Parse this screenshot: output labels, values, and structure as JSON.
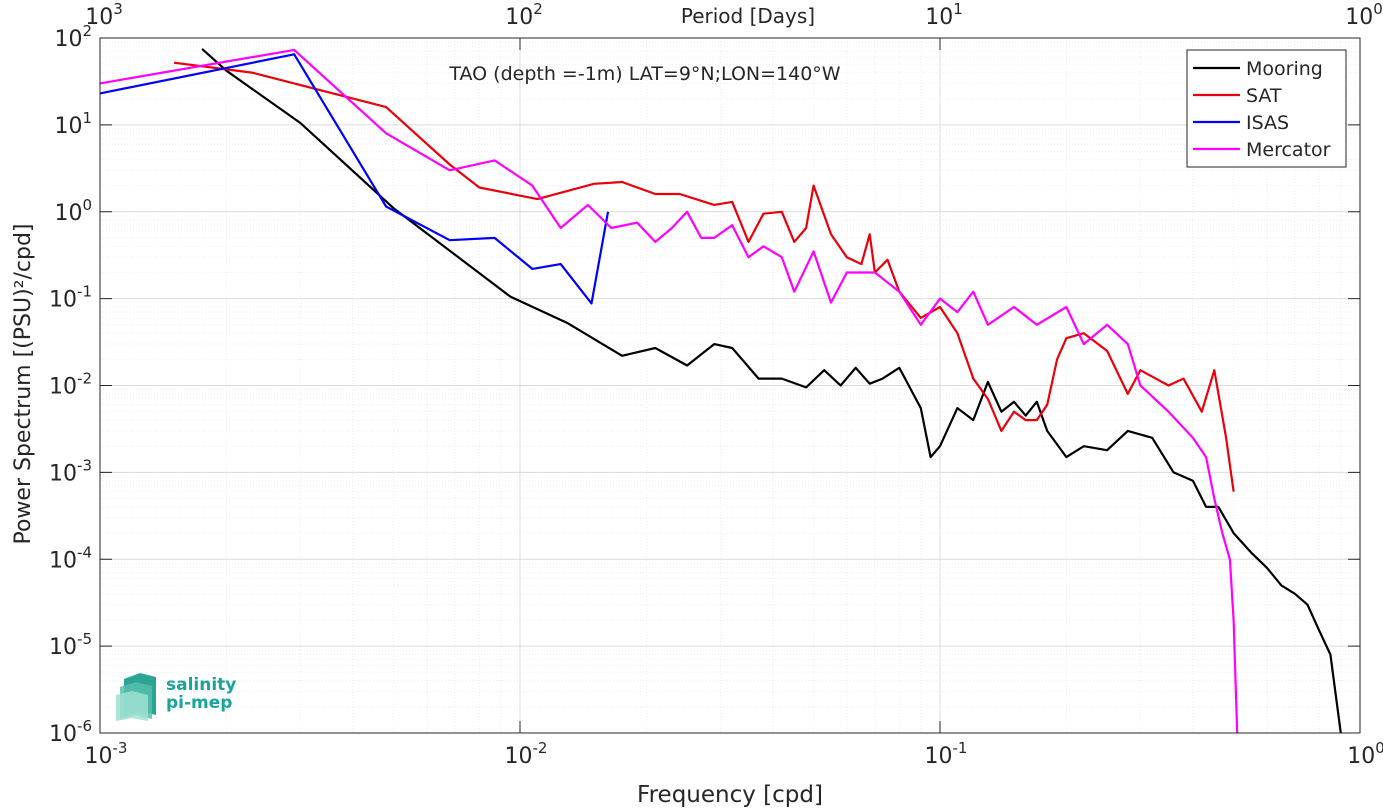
{
  "logo": {
    "line1": "salinity",
    "line2": "pi-mep",
    "color": "#1aa39a"
  },
  "chart_data": {
    "type": "line",
    "title": "TAO (depth =-1m) LAT=9°N;LON=140°W",
    "xlabel": "Frequency [cpd]",
    "ylabel": "Power Spectrum [(PSU)²/cpd]",
    "top_xlabel": "Period [Days]",
    "xscale": "log",
    "yscale": "log",
    "xlim": [
      0.001,
      1
    ],
    "ylim": [
      1e-06,
      100
    ],
    "grid": true,
    "legend_position": "top-right",
    "x_ticks": [
      {
        "value": 0.001,
        "base": "10",
        "exp": "-3"
      },
      {
        "value": 0.01,
        "base": "10",
        "exp": "-2"
      },
      {
        "value": 0.1,
        "base": "10",
        "exp": "-1"
      },
      {
        "value": 1,
        "base": "10",
        "exp": "0"
      }
    ],
    "top_x_ticks": [
      {
        "value": 0.001,
        "base": "10",
        "exp": "3"
      },
      {
        "value": 0.01,
        "base": "10",
        "exp": "2"
      },
      {
        "value": 0.1,
        "base": "10",
        "exp": "1"
      },
      {
        "value": 1,
        "base": "10",
        "exp": "0"
      }
    ],
    "y_ticks": [
      {
        "value": 1e-06,
        "base": "10",
        "exp": "-6"
      },
      {
        "value": 1e-05,
        "base": "10",
        "exp": "-5"
      },
      {
        "value": 0.0001,
        "base": "10",
        "exp": "-4"
      },
      {
        "value": 0.001,
        "base": "10",
        "exp": "-3"
      },
      {
        "value": 0.01,
        "base": "10",
        "exp": "-2"
      },
      {
        "value": 0.1,
        "base": "10",
        "exp": "-1"
      },
      {
        "value": 1,
        "base": "10",
        "exp": "0"
      },
      {
        "value": 10,
        "base": "10",
        "exp": "1"
      },
      {
        "value": 100,
        "base": "10",
        "exp": "2"
      }
    ],
    "series": [
      {
        "name": "Mooring",
        "color": "#000000",
        "points": [
          [
            0.00175,
            75
          ],
          [
            0.002,
            42
          ],
          [
            0.003,
            10.5
          ],
          [
            0.005,
            1.1
          ],
          [
            0.0095,
            0.105
          ],
          [
            0.013,
            0.052
          ],
          [
            0.0175,
            0.022
          ],
          [
            0.021,
            0.027
          ],
          [
            0.025,
            0.017
          ],
          [
            0.029,
            0.03
          ],
          [
            0.032,
            0.027
          ],
          [
            0.037,
            0.012
          ],
          [
            0.042,
            0.012
          ],
          [
            0.048,
            0.0095
          ],
          [
            0.053,
            0.015
          ],
          [
            0.058,
            0.01
          ],
          [
            0.063,
            0.016
          ],
          [
            0.068,
            0.0105
          ],
          [
            0.073,
            0.012
          ],
          [
            0.08,
            0.016
          ],
          [
            0.09,
            0.0055
          ],
          [
            0.095,
            0.0015
          ],
          [
            0.1,
            0.002
          ],
          [
            0.11,
            0.0055
          ],
          [
            0.12,
            0.004
          ],
          [
            0.13,
            0.011
          ],
          [
            0.14,
            0.005
          ],
          [
            0.15,
            0.0065
          ],
          [
            0.16,
            0.0045
          ],
          [
            0.17,
            0.0065
          ],
          [
            0.18,
            0.003
          ],
          [
            0.2,
            0.0015
          ],
          [
            0.22,
            0.002
          ],
          [
            0.25,
            0.0018
          ],
          [
            0.28,
            0.003
          ],
          [
            0.32,
            0.0025
          ],
          [
            0.36,
            0.001
          ],
          [
            0.4,
            0.0008
          ],
          [
            0.43,
            0.0004
          ],
          [
            0.46,
            0.0004
          ],
          [
            0.5,
            0.0002
          ],
          [
            0.55,
            0.00012
          ],
          [
            0.6,
            8e-05
          ],
          [
            0.65,
            5e-05
          ],
          [
            0.7,
            4e-05
          ],
          [
            0.75,
            3e-05
          ],
          [
            0.8,
            1.5e-05
          ],
          [
            0.85,
            8e-06
          ],
          [
            0.9,
            1e-06
          ]
        ]
      },
      {
        "name": "SAT",
        "color": "#e8000b",
        "points": [
          [
            0.0015,
            52
          ],
          [
            0.0023,
            40
          ],
          [
            0.0048,
            16
          ],
          [
            0.0068,
            3.5
          ],
          [
            0.008,
            1.9
          ],
          [
            0.011,
            1.4
          ],
          [
            0.015,
            2.1
          ],
          [
            0.0175,
            2.2
          ],
          [
            0.021,
            1.6
          ],
          [
            0.024,
            1.6
          ],
          [
            0.029,
            1.2
          ],
          [
            0.032,
            1.3
          ],
          [
            0.035,
            0.45
          ],
          [
            0.038,
            0.95
          ],
          [
            0.042,
            1.0
          ],
          [
            0.045,
            0.45
          ],
          [
            0.048,
            0.65
          ],
          [
            0.05,
            2.0
          ],
          [
            0.055,
            0.55
          ],
          [
            0.06,
            0.3
          ],
          [
            0.065,
            0.25
          ],
          [
            0.068,
            0.55
          ],
          [
            0.07,
            0.2
          ],
          [
            0.075,
            0.28
          ],
          [
            0.08,
            0.12
          ],
          [
            0.09,
            0.06
          ],
          [
            0.1,
            0.08
          ],
          [
            0.11,
            0.04
          ],
          [
            0.12,
            0.012
          ],
          [
            0.13,
            0.007
          ],
          [
            0.14,
            0.003
          ],
          [
            0.15,
            0.005
          ],
          [
            0.16,
            0.004
          ],
          [
            0.17,
            0.004
          ],
          [
            0.18,
            0.006
          ],
          [
            0.19,
            0.02
          ],
          [
            0.2,
            0.035
          ],
          [
            0.22,
            0.04
          ],
          [
            0.25,
            0.025
          ],
          [
            0.28,
            0.008
          ],
          [
            0.3,
            0.015
          ],
          [
            0.35,
            0.01
          ],
          [
            0.38,
            0.012
          ],
          [
            0.42,
            0.005
          ],
          [
            0.45,
            0.015
          ],
          [
            0.48,
            0.0025
          ],
          [
            0.5,
            0.0006
          ]
        ]
      },
      {
        "name": "ISAS",
        "color": "#0000ff",
        "points": [
          [
            0.001,
            23
          ],
          [
            0.0029,
            65
          ],
          [
            0.0048,
            1.15
          ],
          [
            0.0068,
            0.47
          ],
          [
            0.0087,
            0.5
          ],
          [
            0.0107,
            0.22
          ],
          [
            0.0125,
            0.25
          ],
          [
            0.0148,
            0.088
          ],
          [
            0.0162,
            1.0
          ]
        ]
      },
      {
        "name": "Mercator",
        "color": "#ff00ff",
        "points": [
          [
            0.001,
            30
          ],
          [
            0.0029,
            73
          ],
          [
            0.0048,
            8
          ],
          [
            0.0068,
            3.0
          ],
          [
            0.0087,
            3.9
          ],
          [
            0.0107,
            2.0
          ],
          [
            0.0125,
            0.65
          ],
          [
            0.0145,
            1.2
          ],
          [
            0.0165,
            0.65
          ],
          [
            0.019,
            0.75
          ],
          [
            0.021,
            0.45
          ],
          [
            0.023,
            0.65
          ],
          [
            0.025,
            1.0
          ],
          [
            0.027,
            0.5
          ],
          [
            0.029,
            0.5
          ],
          [
            0.032,
            0.7
          ],
          [
            0.035,
            0.3
          ],
          [
            0.038,
            0.4
          ],
          [
            0.042,
            0.3
          ],
          [
            0.045,
            0.12
          ],
          [
            0.05,
            0.35
          ],
          [
            0.055,
            0.09
          ],
          [
            0.06,
            0.2
          ],
          [
            0.07,
            0.2
          ],
          [
            0.08,
            0.12
          ],
          [
            0.09,
            0.05
          ],
          [
            0.1,
            0.1
          ],
          [
            0.11,
            0.07
          ],
          [
            0.12,
            0.12
          ],
          [
            0.13,
            0.05
          ],
          [
            0.15,
            0.08
          ],
          [
            0.17,
            0.05
          ],
          [
            0.2,
            0.08
          ],
          [
            0.22,
            0.03
          ],
          [
            0.25,
            0.05
          ],
          [
            0.28,
            0.03
          ],
          [
            0.3,
            0.01
          ],
          [
            0.35,
            0.005
          ],
          [
            0.4,
            0.0025
          ],
          [
            0.43,
            0.0015
          ],
          [
            0.45,
            0.0005
          ],
          [
            0.47,
            0.0002
          ],
          [
            0.49,
            0.0001
          ],
          [
            0.5,
            2e-05
          ],
          [
            0.51,
            1e-06
          ]
        ]
      }
    ]
  }
}
